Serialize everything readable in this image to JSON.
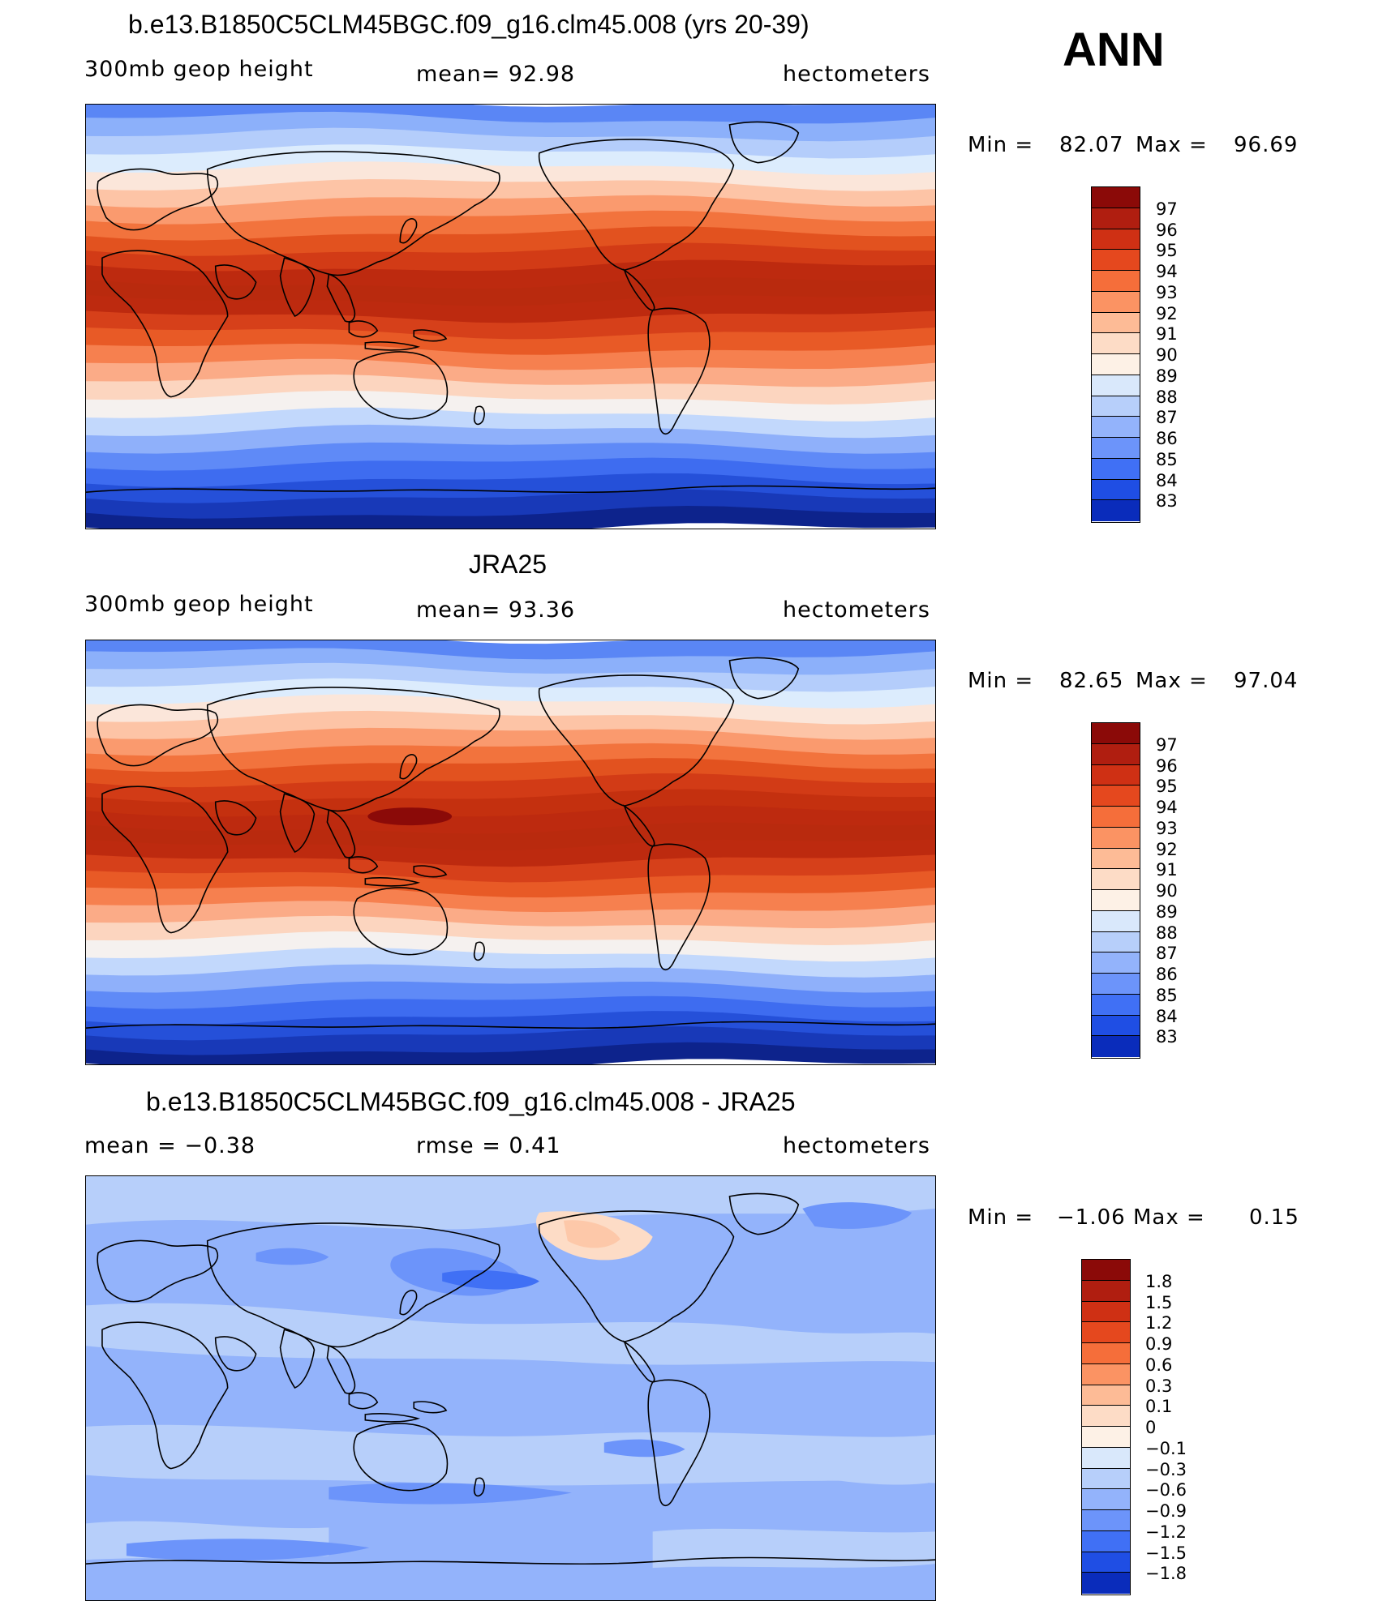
{
  "header": {
    "ann_label": "ANN"
  },
  "panels": [
    {
      "title": "b.e13.B1850C5CLM45BGC.f09_g16.clm45.008 (yrs 20-39)",
      "left_label": "300mb  geop  height",
      "center_label": "mean=   92.98",
      "right_label": "hectometers",
      "min_label": "Min  =",
      "min_value": "82.07",
      "max_label": "Max  =",
      "max_value": "96.69",
      "colorbar": {
        "labels": [
          "97",
          "96",
          "95",
          "94",
          "93",
          "92",
          "91",
          "90",
          "89",
          "88",
          "87",
          "86",
          "85",
          "84",
          "83"
        ],
        "colors": [
          "#8b0a08",
          "#b01e10",
          "#cf3014",
          "#e5481e",
          "#f56e3a",
          "#fb9363",
          "#fdbb96",
          "#fddcc6",
          "#fdf1e6",
          "#d9e8fb",
          "#b7cffa",
          "#93b3fb",
          "#6c94fa",
          "#4070f5",
          "#1f4ee4",
          "#0a2cbb"
        ]
      },
      "map_bands": [
        "#0d238c",
        "#1839b8",
        "#2550d9",
        "#3e6cf0",
        "#5f8af7",
        "#8fb0fa",
        "#c2d8fc",
        "#f5f1ef",
        "#fcd5bf",
        "#fbab87",
        "#f6804f",
        "#e85a26",
        "#d6401a",
        "#bd2a0f",
        "#b92a0e",
        "#bd2a0f",
        "#d23b16",
        "#e2521f",
        "#f2733d",
        "#fa9a6e",
        "#fdc4a6",
        "#fbe6da",
        "#dcecfd",
        "#b4cdfb",
        "#8cb0fa",
        "#5a86f5"
      ]
    },
    {
      "title": "JRA25",
      "left_label": "300mb  geop  height",
      "center_label": "mean=   93.36",
      "right_label": "hectometers",
      "min_label": "Min  =",
      "min_value": "82.65",
      "max_label": "Max  =",
      "max_value": "97.04",
      "colorbar": {
        "labels": [
          "97",
          "96",
          "95",
          "94",
          "93",
          "92",
          "91",
          "90",
          "89",
          "88",
          "87",
          "86",
          "85",
          "84",
          "83"
        ],
        "colors": [
          "#8b0a08",
          "#b01e10",
          "#cf3014",
          "#e5481e",
          "#f56e3a",
          "#fb9363",
          "#fdbb96",
          "#fddcc6",
          "#fdf1e6",
          "#d9e8fb",
          "#b7cffa",
          "#93b3fb",
          "#6c94fa",
          "#4070f5",
          "#1f4ee4",
          "#0a2cbb"
        ]
      },
      "map_bands": [
        "#0d238c",
        "#1839b8",
        "#2550d9",
        "#3e6cf0",
        "#5f8af7",
        "#8fb0fa",
        "#c2d8fc",
        "#f5f1ef",
        "#fcd5bf",
        "#fbab87",
        "#f6804f",
        "#e85a26",
        "#d6401a",
        "#bd2a0f",
        "#b92a0e",
        "#bd2a0f",
        "#c4300f",
        "#d23b16",
        "#e2521f",
        "#f2733d",
        "#fa9a6e",
        "#fdc4a6",
        "#fbe6da",
        "#dcecfd",
        "#b4cdfb",
        "#8cb0fa",
        "#5a86f5"
      ]
    },
    {
      "title": "b.e13.B1850C5CLM45BGC.f09_g16.clm45.008 - JRA25",
      "left_label": "mean  =    −0.38",
      "center_label": "rmse  =     0.41",
      "right_label": "hectometers",
      "min_label": "Min  =",
      "min_value": "−1.06",
      "max_label": "Max  =",
      "max_value": "0.15",
      "colorbar": {
        "labels": [
          "1.8",
          "1.5",
          "1.2",
          "0.9",
          "0.6",
          "0.3",
          "0.1",
          "0",
          "−0.1",
          "−0.3",
          "−0.6",
          "−0.9",
          "−1.2",
          "−1.5",
          "−1.8"
        ],
        "colors": [
          "#8b0a08",
          "#b01e10",
          "#cf3014",
          "#e5481e",
          "#f56e3a",
          "#fb9363",
          "#fdbb96",
          "#fddcc6",
          "#fdf1e6",
          "#d9e8fb",
          "#b7cffa",
          "#93b3fb",
          "#6c94fa",
          "#4070f5",
          "#1f4ee4",
          "#0a2cbb"
        ]
      }
    }
  ]
}
